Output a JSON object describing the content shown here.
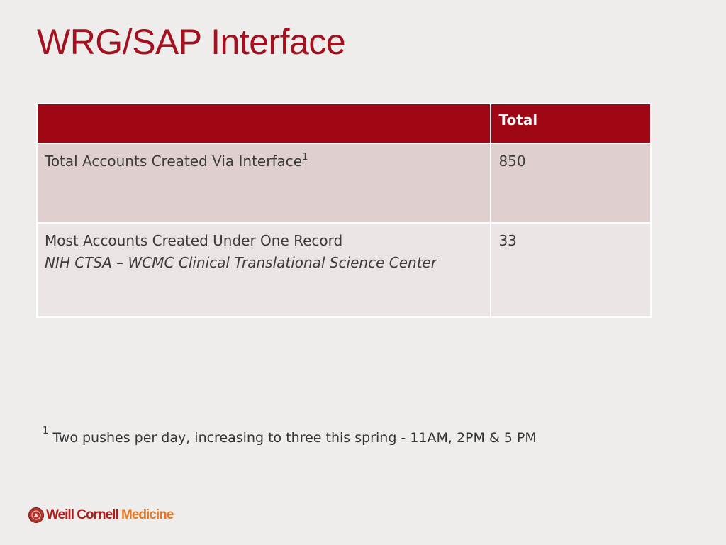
{
  "slide": {
    "title": "WRG/SAP Interface"
  },
  "table": {
    "header": {
      "label_col": "",
      "value_col": "Total"
    },
    "rows": [
      {
        "label": "Total Accounts Created Via Interface",
        "label_sup": "1",
        "value": "850"
      },
      {
        "label": "Most Accounts Created Under One Record",
        "label_line_2": "NIH CTSA – WCMC Clinical Translational Science Center",
        "value": "33"
      }
    ]
  },
  "footnote": {
    "marker": "1",
    "text": " Two pushes per day, increasing to three this spring - 11AM, 2PM & 5 PM"
  },
  "logo": {
    "word_1": "Weill Cornell ",
    "word_2": "Medicine",
    "brand_red": "#b31b1b",
    "brand_orange": "#e87722"
  },
  "colors": {
    "title": "#a3101e",
    "header_fill": "#a00714",
    "row_1_fill": "#e0cfcf",
    "row_2_fill": "#ebe4e4",
    "background": "#efedeb"
  }
}
